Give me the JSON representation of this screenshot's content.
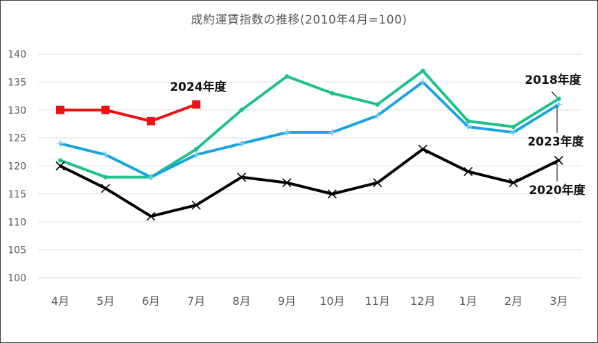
{
  "chart_data": {
    "type": "line",
    "title": "成約運賃指数の推移(2010年4月=100)",
    "categories": [
      "4月",
      "5月",
      "6月",
      "7月",
      "8月",
      "9月",
      "10月",
      "11月",
      "12月",
      "1月",
      "2月",
      "3月"
    ],
    "ylim": [
      100,
      140
    ],
    "yticks": [
      100,
      105,
      110,
      115,
      120,
      125,
      130,
      135,
      140
    ],
    "grid": true,
    "legend": "none",
    "series": [
      {
        "name": "2018年度",
        "color": "#1fc08e",
        "marker": "dot",
        "values": [
          121,
          118,
          118,
          123,
          130,
          136,
          133,
          131,
          137,
          128,
          127,
          132
        ]
      },
      {
        "name": "2023年度",
        "color": "#1aa3e3",
        "marker": "plus",
        "values": [
          124,
          122,
          118,
          122,
          124,
          126,
          126,
          129,
          135,
          127,
          126,
          131
        ]
      },
      {
        "name": "2020年度",
        "color": "#000000",
        "marker": "x",
        "values": [
          120,
          116,
          111,
          113,
          118,
          117,
          115,
          117,
          123,
          119,
          117,
          121
        ]
      },
      {
        "name": "2024年度",
        "color": "#ee1111",
        "marker": "square",
        "values": [
          130,
          130,
          128,
          131,
          null,
          null,
          null,
          null,
          null,
          null,
          null,
          null
        ]
      }
    ]
  }
}
